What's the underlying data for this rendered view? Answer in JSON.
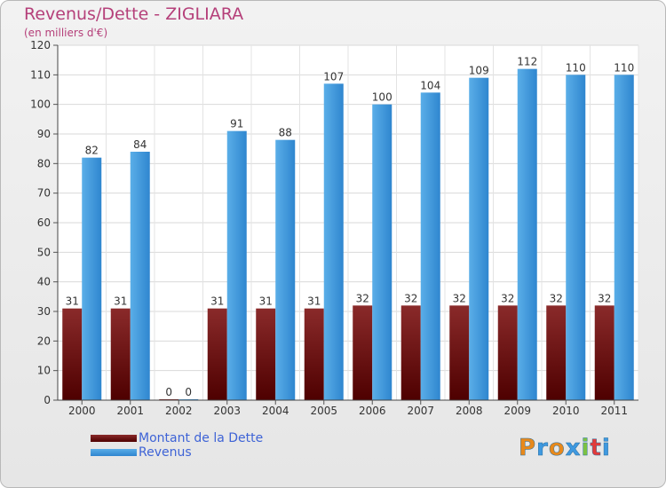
{
  "title": "Revenus/Dette - ZIGLIARA",
  "subtitle": "(en milliers d'€)",
  "logo_text": "Proxiti",
  "colors": {
    "dette": "#6b0a0a",
    "revenus": "#3f99e0",
    "title": "#b5407a",
    "legend_text": "#3e63d6"
  },
  "legend": {
    "dette_label": "Montant de la Dette",
    "revenus_label": "Revenus"
  },
  "chart_data": {
    "type": "bar",
    "categories": [
      "2000",
      "2001",
      "2002",
      "2003",
      "2004",
      "2005",
      "2006",
      "2007",
      "2008",
      "2009",
      "2010",
      "2011"
    ],
    "series": [
      {
        "name": "Montant de la Dette",
        "values": [
          31,
          31,
          0,
          31,
          31,
          31,
          32,
          32,
          32,
          32,
          32,
          32
        ]
      },
      {
        "name": "Revenus",
        "values": [
          82,
          84,
          0,
          91,
          88,
          107,
          100,
          104,
          109,
          112,
          110,
          110
        ]
      }
    ],
    "yticks": [
      0,
      10,
      20,
      30,
      40,
      50,
      60,
      70,
      80,
      90,
      100,
      110,
      120
    ],
    "ylim": [
      0,
      120
    ],
    "grid": true,
    "legend_position": "bottom-left"
  }
}
